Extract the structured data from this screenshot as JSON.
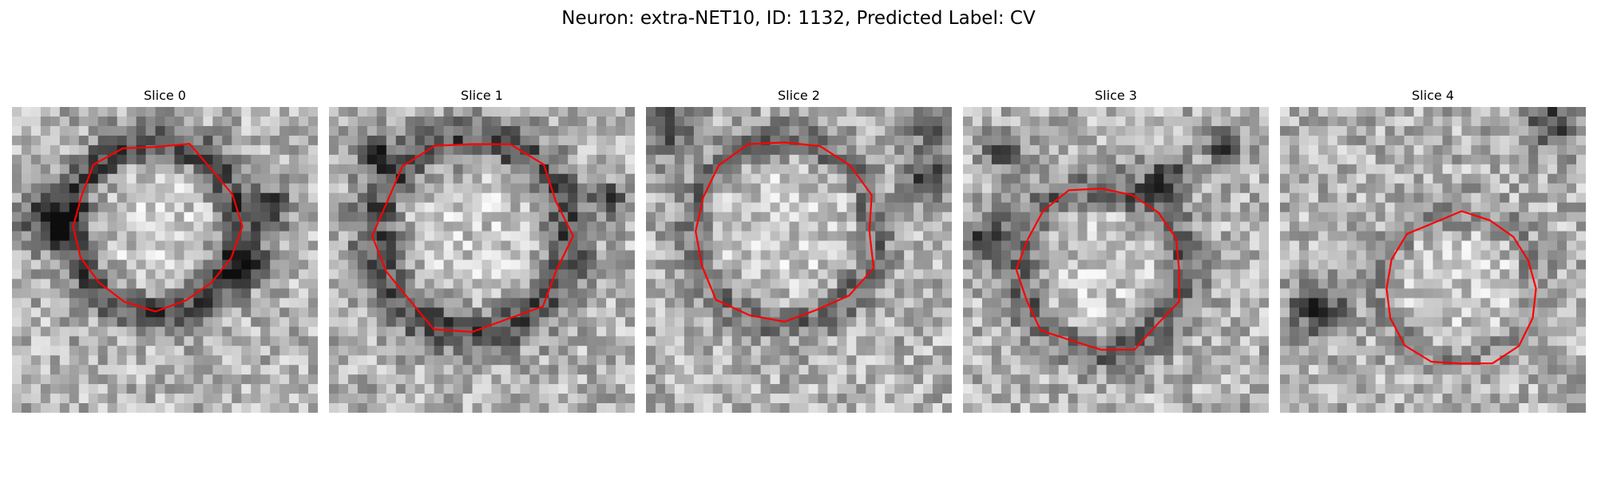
{
  "figure": {
    "title": "Neuron: extra-NET10, ID: 1132, Predicted Label: CV"
  },
  "slices": [
    {
      "title": "Slice 0"
    },
    {
      "title": "Slice 1"
    },
    {
      "title": "Slice 2"
    },
    {
      "title": "Slice 3"
    },
    {
      "title": "Slice 4"
    }
  ],
  "colors": {
    "contour": "#ff0000",
    "background": "#ffffff"
  }
}
